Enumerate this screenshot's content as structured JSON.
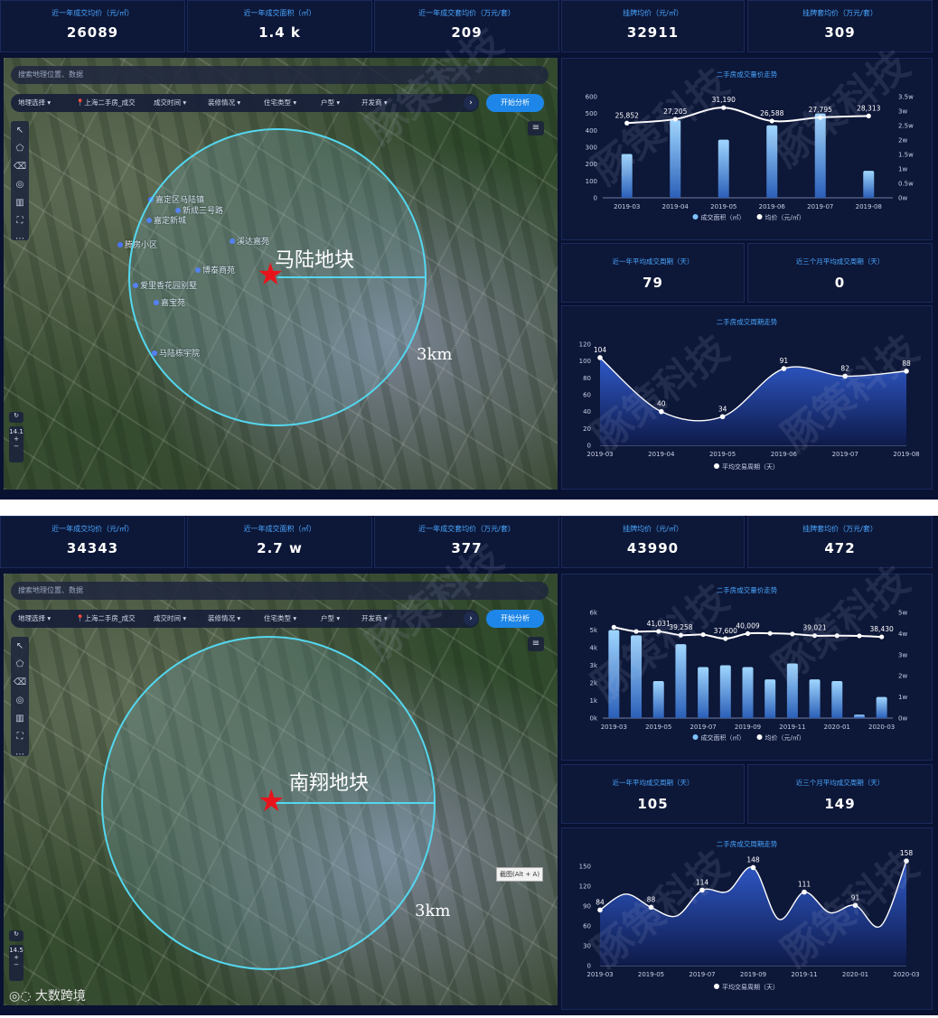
{
  "panels": [
    {
      "id": "top",
      "kpis": [
        {
          "label": "近一年成交均价（元/㎡）",
          "value": "26089"
        },
        {
          "label": "近一年成交面积（㎡）",
          "value": "1.4 k"
        },
        {
          "label": "近一年成交套均价（万元/套）",
          "value": "209"
        },
        {
          "label": "挂牌均价（元/㎡）",
          "value": "32911"
        },
        {
          "label": "挂牌套均价（万元/套）",
          "value": "309"
        }
      ],
      "search": {
        "placeholder": "搜索地理位置、数据"
      },
      "filters": [
        "地理选择 ▾",
        "📍上海二手房_成交",
        "成交时间 ▾",
        "装修情况 ▾",
        "住宅类型 ▾",
        "户型 ▾",
        "开发商 ▾"
      ],
      "start_button": "开始分析",
      "zoom_level": "14.1",
      "plot_label": "马陆地块",
      "distance_label": "3km",
      "pois": [
        "嘉定区马陆镇",
        "新成三号路",
        "嘉定新城",
        "腾房小区",
        "溪达嘉苑",
        "博泰商苑",
        "爱里香花园别墅",
        "嘉宝苑",
        "马陆栋宇院"
      ],
      "price_chart": {
        "title": "二手房成交量价走势",
        "legend": [
          "成交面积（㎡）",
          "均价（元/㎡）"
        ],
        "colors": {
          "bar": "#7fc4ff",
          "line": "#ffffff",
          "axis": "#c8d0e6"
        }
      },
      "stats": [
        {
          "label": "近一年平均成交周期（天）",
          "value": "79"
        },
        {
          "label": "近三个月平均成交周期（天）",
          "value": "0"
        }
      ],
      "cycle_chart": {
        "title": "二手房成交周期走势",
        "legend": [
          "平均交易周期（天）"
        ],
        "colors": {
          "area_top": "#2f59c9",
          "area_bottom": "#0e1a49",
          "line": "#ffffff"
        }
      }
    },
    {
      "id": "bottom",
      "kpis": [
        {
          "label": "近一年成交均价（元/㎡）",
          "value": "34343"
        },
        {
          "label": "近一年成交面积（㎡）",
          "value": "2.7 w"
        },
        {
          "label": "近一年成交套均价（万元/套）",
          "value": "377"
        },
        {
          "label": "挂牌均价（元/㎡）",
          "value": "43990"
        },
        {
          "label": "挂牌套均价（万元/套）",
          "value": "472"
        }
      ],
      "search": {
        "placeholder": "搜索地理位置、数据"
      },
      "filters": [
        "地理选择 ▾",
        "📍上海二手房_成交",
        "成交时间 ▾",
        "装修情况 ▾",
        "住宅类型 ▾",
        "户型 ▾",
        "开发商 ▾"
      ],
      "start_button": "开始分析",
      "zoom_level": "14.5",
      "plot_label": "南翔地块",
      "distance_label": "3km",
      "pois": [],
      "tooltip": "截图(Alt + A)",
      "price_chart": {
        "title": "二手房成交量价走势",
        "legend": [
          "成交面积（㎡）",
          "均价（元/㎡）"
        ],
        "colors": {
          "bar": "#7fc4ff",
          "line": "#ffffff",
          "axis": "#c8d0e6"
        }
      },
      "stats": [
        {
          "label": "近一年平均成交周期（天）",
          "value": "105"
        },
        {
          "label": "近三个月平均成交周期（天）",
          "value": "149"
        }
      ],
      "cycle_chart": {
        "title": "二手房成交周期走势",
        "legend": [
          "平均交易周期（天）"
        ],
        "colors": {
          "area_top": "#2f59c9",
          "area_bottom": "#0e1a49",
          "line": "#ffffff"
        }
      }
    }
  ],
  "watermark": "豚策科技",
  "source_watermark": "大数跨境",
  "chart_data": [
    {
      "type": "bar",
      "title": "二手房成交量价走势",
      "categories": [
        "2019-03",
        "2019-04",
        "2019-05",
        "2019-06",
        "2019-07",
        "2019-08"
      ],
      "series": [
        {
          "name": "成交面积（㎡）",
          "axis": "left",
          "kind": "bar",
          "values": [
            260,
            460,
            345,
            430,
            500,
            160
          ]
        },
        {
          "name": "均价（元/㎡）",
          "axis": "right",
          "kind": "line",
          "values": [
            25852,
            27205,
            31190,
            26588,
            27795,
            28313
          ],
          "labels": [
            "25,852",
            "27,205",
            "31,190",
            "26,588",
            "27,795",
            "28,313"
          ]
        }
      ],
      "ylim_left": [
        0,
        600
      ],
      "yticks_left": [
        "0",
        "100",
        "200",
        "300",
        "400",
        "500",
        "600"
      ],
      "ylim_right": [
        0,
        35000
      ],
      "yticks_right": [
        "0w",
        "0.5w",
        "1w",
        "1.5w",
        "2w",
        "2.5w",
        "3w",
        "3.5w"
      ]
    },
    {
      "type": "area",
      "title": "二手房成交周期走势",
      "categories": [
        "2019-03",
        "2019-04",
        "2019-05",
        "2019-06",
        "2019-07",
        "2019-08"
      ],
      "series": [
        {
          "name": "平均交易周期（天）",
          "values": [
            104,
            40,
            34,
            91,
            82,
            88
          ]
        }
      ],
      "ylim": [
        0,
        120
      ],
      "yticks": [
        "0",
        "20",
        "40",
        "60",
        "80",
        "100",
        "120"
      ]
    },
    {
      "type": "bar",
      "title": "二手房成交量价走势",
      "categories": [
        "2019-03",
        "2019-04",
        "2019-05",
        "2019-06",
        "2019-07",
        "2019-08",
        "2019-09",
        "2019-10",
        "2019-11",
        "2019-12",
        "2020-01",
        "2020-02",
        "2020-03"
      ],
      "xticks": [
        "2019-03",
        "2019-05",
        "2019-07",
        "2019-09",
        "2019-11",
        "2020-01",
        "2020-03"
      ],
      "series": [
        {
          "name": "成交面积（㎡）",
          "axis": "left",
          "kind": "bar",
          "values": [
            5000,
            4700,
            2100,
            4200,
            2900,
            3000,
            2900,
            2200,
            3100,
            2200,
            2100,
            200,
            1200
          ]
        },
        {
          "name": "均价（元/㎡）",
          "axis": "right",
          "kind": "line",
          "values": [
            43000,
            41000,
            41031,
            39258,
            39500,
            37600,
            40009,
            40100,
            39800,
            39021,
            39000,
            38900,
            38430
          ],
          "labels": [
            "",
            "",
            "41,031",
            "39,258",
            "",
            "37,600",
            "40,009",
            "",
            "",
            "39,021",
            "",
            "",
            "38,430"
          ]
        }
      ],
      "ylim_left": [
        0,
        6000
      ],
      "yticks_left": [
        "0k",
        "1k",
        "2k",
        "3k",
        "4k",
        "5k",
        "6k"
      ],
      "ylim_right": [
        0,
        50000
      ],
      "yticks_right": [
        "0w",
        "1w",
        "2w",
        "3w",
        "4w",
        "5w"
      ]
    },
    {
      "type": "area",
      "title": "二手房成交周期走势",
      "categories": [
        "2019-03",
        "2019-04",
        "2019-05",
        "2019-06",
        "2019-07",
        "2019-08",
        "2019-09",
        "2019-10",
        "2019-11",
        "2019-12",
        "2020-01",
        "2020-02",
        "2020-03"
      ],
      "xticks": [
        "2019-03",
        "2019-05",
        "2019-07",
        "2019-09",
        "2019-11",
        "2020-01",
        "2020-03"
      ],
      "series": [
        {
          "name": "平均交易周期（天）",
          "values": [
            84,
            108,
            88,
            75,
            114,
            112,
            148,
            70,
            111,
            80,
            91,
            60,
            158
          ]
        }
      ],
      "point_labels": [
        "84",
        "",
        "88",
        "",
        "114",
        "",
        "148",
        "",
        "111",
        "",
        "91",
        "",
        "158"
      ],
      "ylim": [
        0,
        150
      ],
      "yticks": [
        "0",
        "30",
        "60",
        "90",
        "120",
        "150"
      ]
    }
  ]
}
